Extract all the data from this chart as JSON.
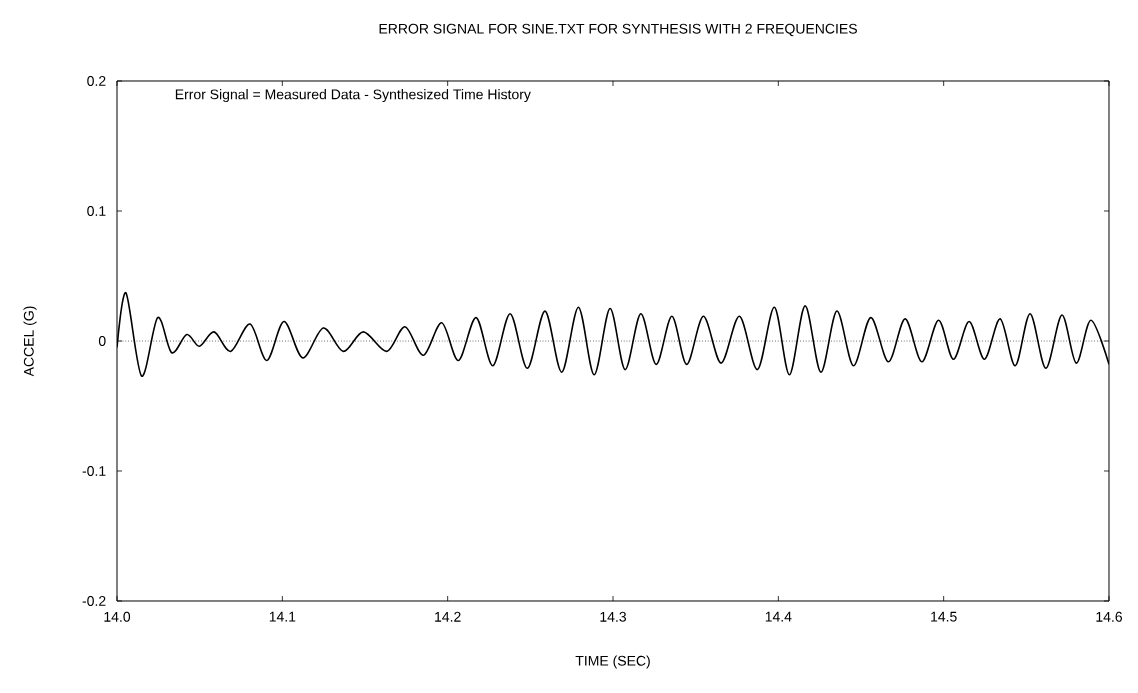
{
  "chart_data": {
    "type": "line",
    "title": "ERROR SIGNAL FOR SINE.TXT   FOR SYNTHESIS WITH 2 FREQUENCIES",
    "xlabel": "TIME (SEC)",
    "ylabel": "ACCEL (G)",
    "annotations": [
      "Error Signal = Measured Data - Synthesized Time History"
    ],
    "xlim": [
      14.0,
      14.6
    ],
    "ylim": [
      -0.2,
      0.2
    ],
    "xticks": [
      {
        "value": 14.0,
        "label": "14.0"
      },
      {
        "value": 14.1,
        "label": "14.1"
      },
      {
        "value": 14.2,
        "label": "14.2"
      },
      {
        "value": 14.3,
        "label": "14.3"
      },
      {
        "value": 14.4,
        "label": "14.4"
      },
      {
        "value": 14.5,
        "label": "14.5"
      },
      {
        "value": 14.6,
        "label": "14.6"
      }
    ],
    "yticks": [
      {
        "value": -0.2,
        "label": "-0.2"
      },
      {
        "value": -0.1,
        "label": "-0.1"
      },
      {
        "value": 0,
        "label": "0"
      },
      {
        "value": 0.1,
        "label": "0.1"
      },
      {
        "value": 0.2,
        "label": "0.2"
      }
    ],
    "ref_lines": [
      {
        "axis": "y",
        "value": 0,
        "color": "#000000",
        "line_style": "dotted"
      }
    ],
    "series": [
      {
        "color": "#000000",
        "x": [
          14.0,
          14.0054,
          14.0149,
          14.0246,
          14.0331,
          14.0422,
          14.0498,
          14.0587,
          14.0688,
          14.0805,
          14.0906,
          14.101,
          14.1123,
          14.1248,
          14.1369,
          14.149,
          14.1632,
          14.1742,
          14.1853,
          14.1964,
          14.2065,
          14.2172,
          14.2273,
          14.2378,
          14.2482,
          14.2589,
          14.269,
          14.2791,
          14.2886,
          14.2982,
          14.3073,
          14.3168,
          14.3261,
          14.3356,
          14.3446,
          14.3547,
          14.3654,
          14.3765,
          14.3874,
          14.3976,
          14.4067,
          14.4162,
          14.4257,
          14.4354,
          14.4454,
          14.4559,
          14.4666,
          14.4767,
          14.4868,
          14.4969,
          14.5059,
          14.5154,
          14.5247,
          14.5342,
          14.5433,
          14.5523,
          14.5618,
          14.5715,
          14.5802,
          14.5891,
          14.6
        ],
        "values": [
          -0.005,
          0.037,
          -0.027,
          0.018,
          -0.009,
          0.005,
          -0.004,
          0.007,
          -0.008,
          0.013,
          -0.015,
          0.015,
          -0.013,
          0.01,
          -0.008,
          0.007,
          -0.008,
          0.011,
          -0.011,
          0.014,
          -0.015,
          0.018,
          -0.019,
          0.021,
          -0.021,
          0.023,
          -0.024,
          0.026,
          -0.026,
          0.025,
          -0.022,
          0.021,
          -0.018,
          0.019,
          -0.018,
          0.019,
          -0.017,
          0.019,
          -0.022,
          0.026,
          -0.026,
          0.027,
          -0.024,
          0.023,
          -0.019,
          0.018,
          -0.016,
          0.017,
          -0.016,
          0.016,
          -0.014,
          0.015,
          -0.014,
          0.017,
          -0.019,
          0.021,
          -0.021,
          0.02,
          -0.017,
          0.016,
          -0.018
        ]
      }
    ]
  }
}
